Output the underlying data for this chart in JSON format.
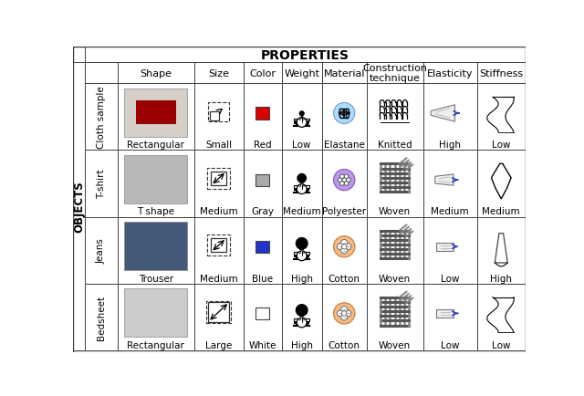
{
  "title": "PROPERTIES",
  "objects_label": "OBJECTS",
  "row_labels": [
    "Cloth sample",
    "T-shirt",
    "Jeans",
    "Bedsheet"
  ],
  "col_headers": [
    "Shape",
    "Size",
    "Color",
    "Weight",
    "Material",
    "Construction\ntechnique",
    "Elasticity",
    "Stiffness"
  ],
  "shape_labels": [
    "Rectangular",
    "T shape",
    "Trouser",
    "Rectangular"
  ],
  "size_labels": [
    "Small",
    "Medium",
    "Medium",
    "Large"
  ],
  "color_labels": [
    "Red",
    "Gray",
    "Blue",
    "White"
  ],
  "color_swatches": [
    "#dd0000",
    "#aaaaaa",
    "#2233cc",
    "#ffffff"
  ],
  "weight_labels": [
    "Low",
    "Medium",
    "High",
    "High"
  ],
  "material_labels": [
    "Elastane",
    "Polyester",
    "Cotton",
    "Cotton"
  ],
  "material_colors": [
    "#aaddff",
    "#bb99ee",
    "#f5bb88",
    "#f5bb88"
  ],
  "construction_labels": [
    "Knitted",
    "Woven",
    "Woven",
    "Woven"
  ],
  "elasticity_labels": [
    "High",
    "Medium",
    "Low",
    "Low"
  ],
  "stiffness_labels": [
    "Low",
    "Medium",
    "High",
    "Low"
  ],
  "bg_color": "#ffffff",
  "grid_color": "#444444",
  "title_fontsize": 10,
  "header_fontsize": 8,
  "label_fontsize": 7.5,
  "row_label_fontsize": 7.5
}
